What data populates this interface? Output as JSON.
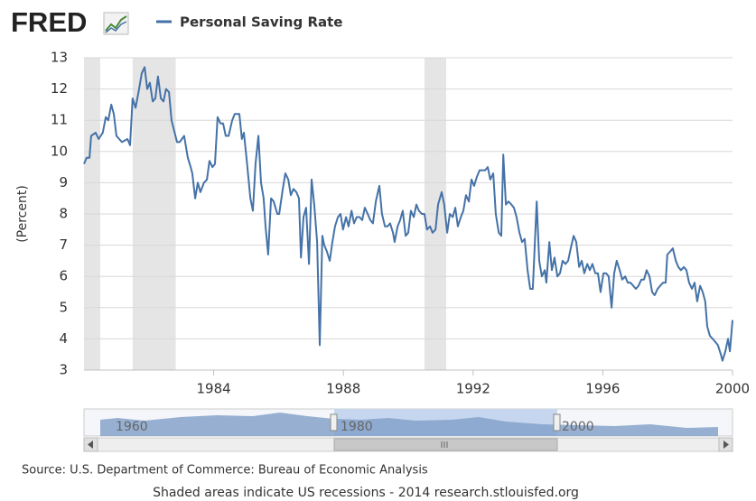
{
  "logo": "FRED",
  "chart_data": {
    "type": "line",
    "y_label": "(Percent)",
    "series": [
      {
        "name": "Personal Saving Rate",
        "color": "#4572a7",
        "values": [
          9.6,
          9.8,
          9.8,
          10.5,
          10.6,
          10.4,
          10.6,
          11.1,
          11.0,
          11.5,
          11.2,
          10.5,
          10.3,
          10.4,
          10.2,
          11.7,
          11.4,
          12.0,
          12.5,
          12.7,
          12.0,
          12.2,
          11.6,
          11.7,
          12.4,
          11.7,
          11.6,
          12.0,
          11.9,
          11.0,
          10.3,
          10.3,
          10.5,
          9.8,
          9.5,
          9.3,
          8.5,
          9.0,
          8.7,
          9.0,
          9.1,
          9.7,
          9.5,
          9.6,
          11.1,
          10.9,
          10.9,
          10.5,
          10.5,
          11.0,
          11.2,
          11.2,
          10.4,
          10.6,
          9.8,
          8.5,
          8.1,
          9.6,
          10.5,
          9.0,
          8.5,
          7.6,
          6.7,
          8.5,
          8.4,
          8.0,
          8.0,
          8.8,
          9.3,
          9.1,
          8.6,
          8.8,
          8.7,
          8.5,
          6.6,
          7.9,
          8.2,
          6.4,
          9.1,
          8.3,
          7.1,
          3.8,
          7.3,
          7.0,
          6.8,
          6.5,
          7.1,
          7.6,
          7.9,
          8.0,
          7.5,
          7.9,
          7.6,
          8.1,
          7.7,
          7.9,
          7.9,
          7.8,
          8.2,
          8.0,
          7.8,
          7.7,
          8.4,
          8.9,
          8.0,
          7.6,
          7.6,
          7.7,
          7.4,
          7.1,
          7.6,
          7.8,
          8.1,
          7.3,
          7.4,
          8.1,
          7.9,
          8.3,
          8.1,
          8.0,
          8.0,
          7.5,
          7.6,
          7.4,
          7.5,
          8.3,
          8.7,
          8.3,
          7.4,
          8.0,
          7.9,
          8.2,
          7.6,
          7.9,
          8.1,
          8.6,
          8.4,
          9.1,
          8.9,
          9.2,
          9.4,
          9.4,
          9.4,
          9.5,
          9.1,
          9.3,
          8.0,
          7.4,
          7.3,
          9.9,
          8.3,
          8.4,
          8.3,
          8.2,
          7.9,
          7.4,
          7.1,
          7.2,
          6.2,
          5.6,
          5.6,
          8.4,
          6.5,
          6.0,
          6.2,
          5.8,
          7.1,
          6.2,
          6.6,
          6.0,
          6.1,
          6.5,
          6.4,
          6.5,
          6.9,
          7.3,
          7.1,
          6.3,
          6.5,
          6.1,
          6.4,
          6.2,
          6.4,
          6.1,
          6.1,
          5.5,
          6.1,
          6.1,
          6.0,
          5.0,
          6.1,
          6.5,
          6.2,
          5.9,
          6.0,
          5.8,
          5.8,
          5.7,
          5.6,
          5.7,
          5.9,
          5.9,
          6.2,
          6.0,
          5.5,
          5.4,
          5.6,
          5.7,
          5.8,
          5.8,
          6.7,
          6.8,
          6.9,
          6.5,
          6.3,
          6.2,
          6.3,
          6.2,
          5.8,
          5.6,
          5.8,
          5.2,
          5.7,
          5.5,
          5.2,
          4.4,
          4.1,
          4.0,
          3.9,
          3.8,
          3.5,
          3.3,
          3.6,
          4.0,
          3.6,
          4.6
        ]
      }
    ],
    "x": [
      1980.0,
      1980.08,
      1980.17,
      1980.22,
      1980.36,
      1980.45,
      1980.58,
      1980.67,
      1980.75,
      1980.84,
      1980.92,
      1981.0,
      1981.17,
      1981.34,
      1981.42,
      1981.5,
      1981.59,
      1981.7,
      1981.78,
      1981.87,
      1981.95,
      1982.03,
      1982.12,
      1982.2,
      1982.28,
      1982.37,
      1982.45,
      1982.53,
      1982.62,
      1982.7,
      1982.87,
      1982.95,
      1983.09,
      1983.2,
      1983.29,
      1983.34,
      1983.43,
      1983.51,
      1983.59,
      1983.7,
      1983.79,
      1983.87,
      1983.96,
      1984.04,
      1984.12,
      1984.21,
      1984.29,
      1984.37,
      1984.46,
      1984.57,
      1984.65,
      1984.79,
      1984.87,
      1984.93,
      1985.01,
      1985.13,
      1985.21,
      1985.29,
      1985.38,
      1985.46,
      1985.54,
      1985.6,
      1985.68,
      1985.77,
      1985.85,
      1985.96,
      1986.02,
      1986.13,
      1986.21,
      1986.3,
      1986.38,
      1986.46,
      1986.55,
      1986.63,
      1986.69,
      1986.77,
      1986.85,
      1986.94,
      1987.02,
      1987.1,
      1987.19,
      1987.27,
      1987.35,
      1987.41,
      1987.49,
      1987.58,
      1987.66,
      1987.74,
      1987.83,
      1987.91,
      1987.99,
      1988.08,
      1988.16,
      1988.25,
      1988.33,
      1988.41,
      1988.5,
      1988.58,
      1988.66,
      1988.75,
      1988.83,
      1988.91,
      1989.0,
      1989.11,
      1989.19,
      1989.28,
      1989.36,
      1989.44,
      1989.53,
      1989.58,
      1989.67,
      1989.75,
      1989.83,
      1989.92,
      1990.0,
      1990.08,
      1990.17,
      1990.25,
      1990.33,
      1990.42,
      1990.5,
      1990.58,
      1990.67,
      1990.75,
      1990.84,
      1990.92,
      1991.03,
      1991.11,
      1991.2,
      1991.28,
      1991.37,
      1991.45,
      1991.53,
      1991.62,
      1991.7,
      1991.78,
      1991.87,
      1991.95,
      1992.03,
      1992.12,
      1992.2,
      1992.28,
      1992.37,
      1992.45,
      1992.53,
      1992.62,
      1992.7,
      1992.79,
      1992.87,
      1992.93,
      1993.01,
      1993.09,
      1993.18,
      1993.26,
      1993.34,
      1993.43,
      1993.51,
      1993.59,
      1993.68,
      1993.76,
      1993.84,
      1993.96,
      1994.04,
      1994.12,
      1994.21,
      1994.26,
      1994.35,
      1994.43,
      1994.51,
      1994.6,
      1994.68,
      1994.76,
      1994.85,
      1994.93,
      1995.01,
      1995.1,
      1995.18,
      1995.27,
      1995.35,
      1995.43,
      1995.52,
      1995.6,
      1995.68,
      1995.77,
      1995.85,
      1995.93,
      1996.02,
      1996.1,
      1996.18,
      1996.27,
      1996.35,
      1996.43,
      1996.52,
      1996.6,
      1996.69,
      1996.77,
      1996.85,
      1996.94,
      1997.02,
      1997.1,
      1997.19,
      1997.27,
      1997.35,
      1997.44,
      1997.52,
      1997.6,
      1997.69,
      1997.77,
      1997.86,
      1997.94,
      1997.99,
      1998.08,
      1998.16,
      1998.25,
      1998.33,
      1998.41,
      1998.5,
      1998.58,
      1998.66,
      1998.75,
      1998.83,
      1998.91,
      1999.0,
      1999.08,
      1999.16,
      1999.22,
      1999.3,
      1999.39,
      1999.47,
      1999.55,
      1999.64,
      1999.69,
      1999.78,
      1999.86,
      1999.92,
      2000.0
    ],
    "recessions": [
      [
        1980,
        1980.5
      ],
      [
        1981.5,
        1982.83
      ],
      [
        1990.5,
        1991.17
      ]
    ],
    "recession_color": "#e5e5e5",
    "xlim": [
      1980,
      2000
    ],
    "xticks": [
      1984,
      1988,
      1992,
      1996,
      2000
    ],
    "ylim": [
      3,
      13
    ],
    "yticks": [
      3,
      4,
      5,
      6,
      7,
      8,
      9,
      10,
      11,
      12,
      13
    ],
    "grid": true
  },
  "navigator": {
    "labels": [
      "1960",
      "1980",
      "2000"
    ]
  },
  "source": "Source: U.S. Department of Commerce: Bureau of Economic Analysis",
  "footer": "Shaded areas indicate US recessions - 2014 research.stlouisfed.org"
}
